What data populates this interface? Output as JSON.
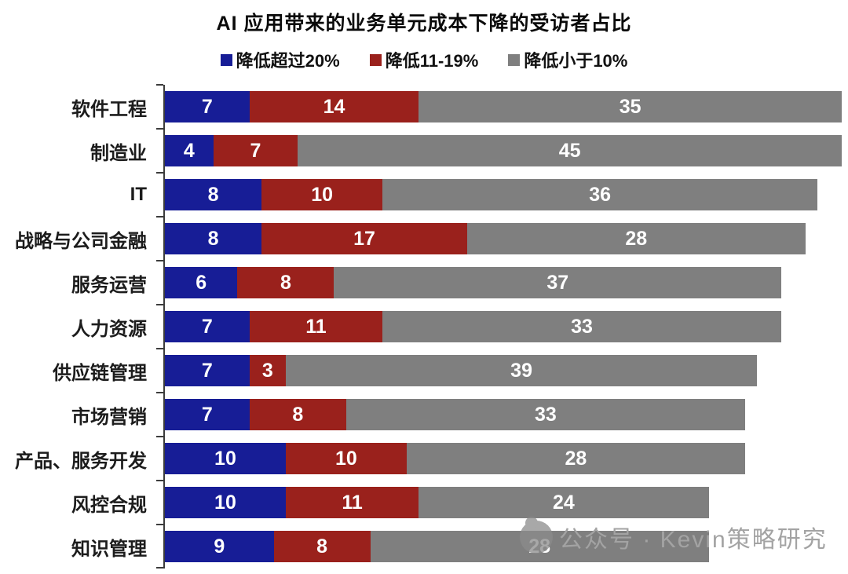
{
  "title": "AI 应用带来的业务单元成本下降的受访者占比",
  "watermark": {
    "text": "公众号 · Kevin策略研究"
  },
  "chart_data": {
    "type": "bar",
    "orientation": "horizontal",
    "stacked": true,
    "title": "AI 应用带来的业务单元成本下降的受访者占比",
    "xlabel": "",
    "ylabel": "",
    "xmax": 56,
    "grid": false,
    "legend_position": "top",
    "bar_label_color": "#ffffff",
    "axis_color": "#3c3c3c",
    "categories": [
      "软件工程",
      "制造业",
      "IT",
      "战略与公司金融",
      "服务运营",
      "人力资源",
      "供应链管理",
      "市场营销",
      "产品、服务开发",
      "风控合规",
      "知识管理"
    ],
    "series": [
      {
        "name": "降低超过20%",
        "color": "#171d96",
        "values": [
          7,
          4,
          8,
          8,
          6,
          7,
          7,
          7,
          10,
          10,
          9
        ]
      },
      {
        "name": "降低11-19%",
        "color": "#9a211c",
        "values": [
          14,
          7,
          10,
          17,
          8,
          11,
          3,
          8,
          10,
          11,
          8
        ]
      },
      {
        "name": "降低小于10%",
        "color": "#7f7f7f",
        "values": [
          35,
          45,
          36,
          28,
          37,
          33,
          39,
          33,
          28,
          24,
          28
        ]
      }
    ]
  }
}
